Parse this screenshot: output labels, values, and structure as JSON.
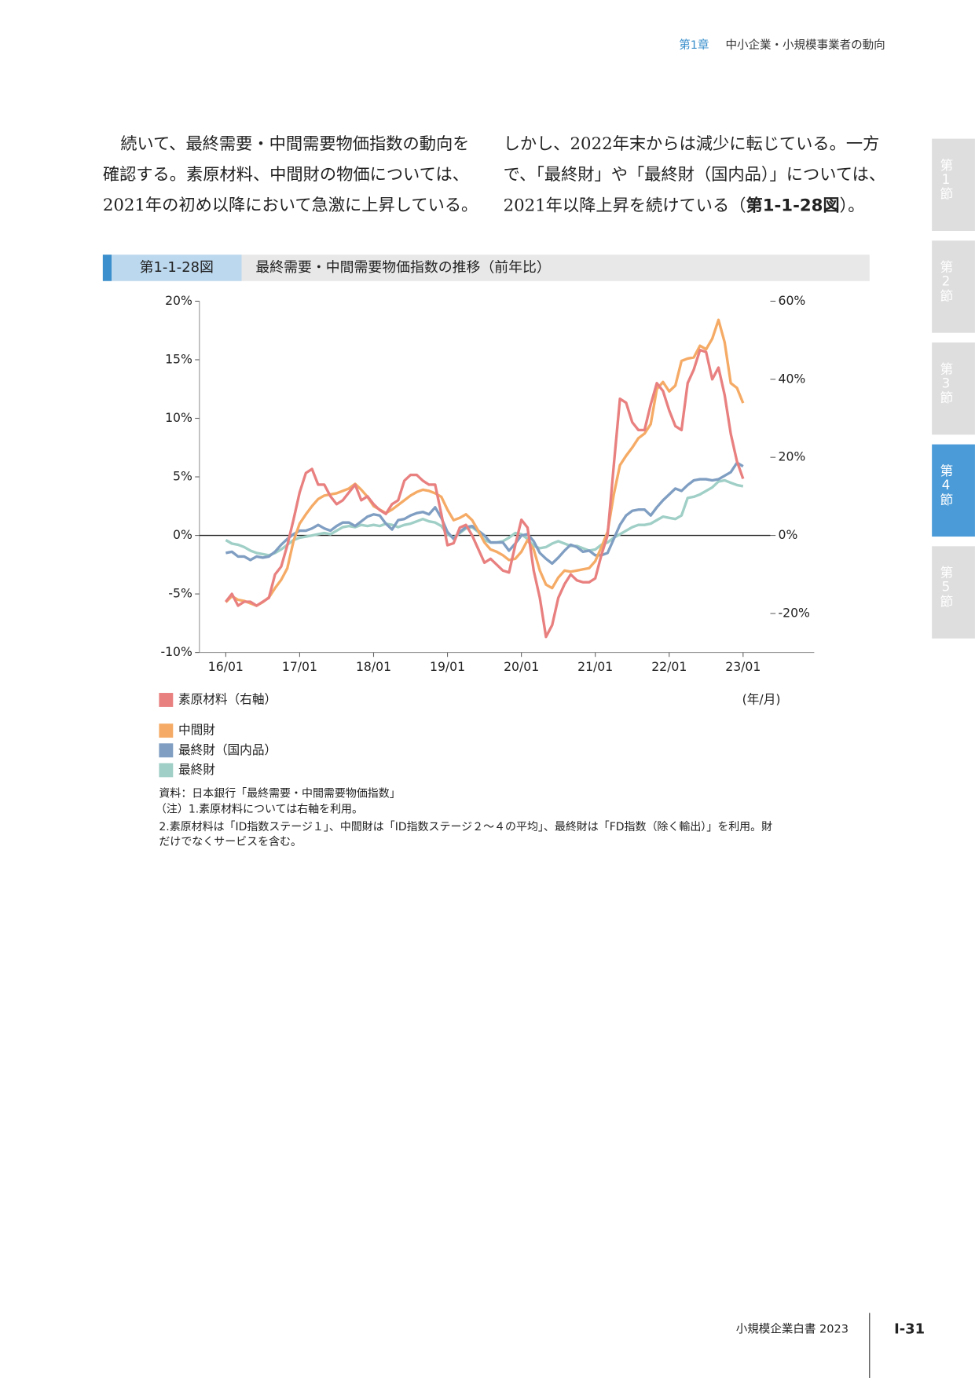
{
  "header": {
    "chapter": "第1章",
    "title": "中小企業・小規模事業者の動向"
  },
  "body": {
    "left": [
      "続いて、最終需要・中間需要物価指数の動向を",
      "確認する。素原材料、中間財の物価については、",
      "2021年の初め以降において急激に上昇している。"
    ],
    "right": [
      "しかし、2022年末からは減少に転じている。一方",
      "で、「最終財」や「最終財（国内品）」については、",
      {
        "before": "2021年以降上昇を続けている（",
        "ref": "第1-1-28図",
        "after": "）。"
      }
    ]
  },
  "side_tabs": [
    {
      "label": "第1節"
    },
    {
      "label": "第2節"
    },
    {
      "label": "第3節"
    },
    {
      "label": "第4節",
      "active": true
    },
    {
      "label": "第5節"
    }
  ],
  "figure": {
    "number": "第1-1-28図",
    "title": "最終需要・中間需要物価指数の推移（前年比）"
  },
  "chart_data": {
    "type": "line",
    "xlabel": "(年/月)",
    "categories": [
      "16/01",
      null,
      null,
      null,
      null,
      null,
      null,
      null,
      null,
      null,
      null,
      null,
      "17/01",
      null,
      null,
      null,
      null,
      null,
      null,
      null,
      null,
      null,
      null,
      null,
      "18/01",
      null,
      null,
      null,
      null,
      null,
      null,
      null,
      null,
      null,
      null,
      null,
      "19/01",
      null,
      null,
      null,
      null,
      null,
      null,
      null,
      null,
      null,
      null,
      null,
      "20/01",
      null,
      null,
      null,
      null,
      null,
      null,
      null,
      null,
      null,
      null,
      null,
      "21/01",
      null,
      null,
      null,
      null,
      null,
      null,
      null,
      null,
      null,
      null,
      null,
      "22/01",
      null,
      null,
      null,
      null,
      null,
      null,
      null,
      null,
      null,
      null,
      null,
      "23/01"
    ],
    "ylim": [
      -10,
      20
    ],
    "yticks": [
      {
        "value": -10,
        "label": "-10%"
      },
      {
        "value": -5,
        "label": "-5%"
      },
      {
        "value": 0,
        "label": "0%"
      },
      {
        "value": 5,
        "label": "5%"
      },
      {
        "value": 10,
        "label": "10%"
      },
      {
        "value": 15,
        "label": "15%"
      },
      {
        "value": 20,
        "label": "20%"
      }
    ],
    "y2lim": [
      -30,
      60
    ],
    "y2ticks": [
      {
        "value": -20,
        "label": "-20%"
      },
      {
        "value": 0,
        "label": "0%"
      },
      {
        "value": 20,
        "label": "20%"
      },
      {
        "value": 40,
        "label": "40%"
      },
      {
        "value": 60,
        "label": "60%"
      }
    ],
    "series": [
      {
        "name": "素原材料（右軸）",
        "color": "#e98080",
        "axis": "y2",
        "values": [
          -17,
          -15,
          -18,
          -17,
          -17,
          -18,
          -17,
          -16,
          -10,
          -8,
          -2.5,
          4,
          11,
          16,
          17,
          13,
          13,
          10,
          8,
          9,
          11,
          13,
          9,
          10,
          8,
          6.5,
          5.5,
          8,
          9,
          14,
          15.5,
          15.5,
          14,
          13,
          13,
          5.5,
          -2.5,
          -2,
          2,
          2.7,
          0,
          -3.5,
          -7,
          -6,
          -7.5,
          -9,
          -9.5,
          -2.5,
          4,
          2,
          -9,
          -16,
          -26,
          -23,
          -16,
          -12.5,
          -10,
          -11.5,
          -12,
          -12,
          -11,
          -5,
          0,
          18,
          35,
          34,
          29,
          27,
          27,
          33.5,
          39,
          37,
          32,
          28,
          27,
          39,
          42.5,
          47.5,
          47,
          40,
          43,
          36,
          26,
          19,
          14.5
        ]
      },
      {
        "name": "中間財",
        "color": "#f5ab66",
        "values": [
          -5.7,
          -5.2,
          -5.5,
          -5.6,
          -5.8,
          -6,
          -5.7,
          -5.3,
          -4.5,
          -3.8,
          -2.8,
          -0.5,
          1,
          1.8,
          2.5,
          3.1,
          3.4,
          3.5,
          3.6,
          3.8,
          4.0,
          4.4,
          3.9,
          3.3,
          2.5,
          2.2,
          1.9,
          2.2,
          2.6,
          3.0,
          3.4,
          3.7,
          3.9,
          3.8,
          3.6,
          3.3,
          2.2,
          1.3,
          1.5,
          1.8,
          1.3,
          0.4,
          -0.6,
          -1.2,
          -1.4,
          -1.7,
          -2.1,
          -2.0,
          -1.4,
          -0.4,
          -1.2,
          -3.0,
          -4.2,
          -4.5,
          -3.6,
          -3.0,
          -3.1,
          -3.0,
          -2.9,
          -2.8,
          -2.2,
          -1.0,
          0.3,
          3.5,
          6.0,
          6.8,
          7.5,
          8.3,
          8.7,
          9.5,
          12.5,
          13.1,
          12.3,
          12.8,
          14.9,
          15.1,
          15.2,
          16.2,
          15.9,
          16.8,
          18.4,
          16.5,
          13.0,
          12.6,
          11.3
        ]
      },
      {
        "name": "最終財（国内品）",
        "color": "#7f9ec2",
        "values": [
          -1.5,
          -1.4,
          -1.8,
          -1.8,
          -2.1,
          -1.8,
          -1.9,
          -1.8,
          -1.4,
          -0.8,
          -0.3,
          0.1,
          0.4,
          0.4,
          0.6,
          0.9,
          0.6,
          0.4,
          0.8,
          1.1,
          1.1,
          0.8,
          1.2,
          1.6,
          1.8,
          1.7,
          1.0,
          0.5,
          1.3,
          1.4,
          1.7,
          1.9,
          2.0,
          1.8,
          2.4,
          1.5,
          0.3,
          -0.3,
          0.3,
          0.7,
          0.8,
          0.4,
          0,
          -0.6,
          -0.6,
          -0.6,
          -1.3,
          -0.7,
          0,
          0.1,
          -0.5,
          -1.5,
          -2.0,
          -2.4,
          -1.9,
          -1.3,
          -0.8,
          -1.0,
          -1.4,
          -1.3,
          -1.7,
          -1.7,
          -1.5,
          -0.3,
          0.9,
          1.7,
          2.1,
          2.2,
          2.2,
          1.7,
          2.4,
          3.0,
          3.5,
          4.0,
          3.8,
          4.3,
          4.7,
          4.8,
          4.8,
          4.7,
          4.8,
          5.1,
          5.4,
          6.2,
          5.9
        ]
      },
      {
        "name": "最終財",
        "color": "#9fcfc6",
        "values": [
          -0.4,
          -0.7,
          -0.8,
          -1.0,
          -1.3,
          -1.5,
          -1.6,
          -1.7,
          -1.5,
          -1.2,
          -0.8,
          -0.4,
          -0.2,
          -0.1,
          0,
          0.1,
          0.2,
          0.1,
          0.4,
          0.7,
          0.8,
          0.7,
          0.9,
          0.8,
          0.9,
          0.8,
          1.0,
          0.9,
          0.7,
          0.9,
          1.0,
          1.2,
          1.4,
          1.2,
          1.1,
          0.8,
          0.1,
          -0.2,
          0.2,
          0.6,
          0.7,
          0.3,
          -0.4,
          -0.6,
          -0.6,
          -0.5,
          -0.2,
          0.2,
          0.1,
          -0.3,
          -0.9,
          -1.1,
          -1.0,
          -0.7,
          -0.5,
          -0.7,
          -0.9,
          -0.9,
          -1.1,
          -1.3,
          -1.2,
          -0.8,
          -0.6,
          -0.2,
          0.1,
          0.4,
          0.7,
          0.9,
          0.9,
          1.0,
          1.3,
          1.6,
          1.5,
          1.4,
          1.7,
          3.2,
          3.3,
          3.5,
          3.8,
          4.1,
          4.6,
          4.7,
          4.5,
          4.3,
          4.2
        ]
      }
    ]
  },
  "notes": [
    "資料：日本銀行「最終需要・中間需要物価指数」",
    "（注）1.素原材料については右軸を利用。",
    "2.素原材料は「ID指数ステージ１」、中間財は「ID指数ステージ２～４の平均」、最終財は「FD指数（除く輸出）」を利用。財",
    "だけでなくサービスを含む。"
  ],
  "footer": {
    "book": "小規模企業白書 2023",
    "page": "Ⅰ-31"
  }
}
